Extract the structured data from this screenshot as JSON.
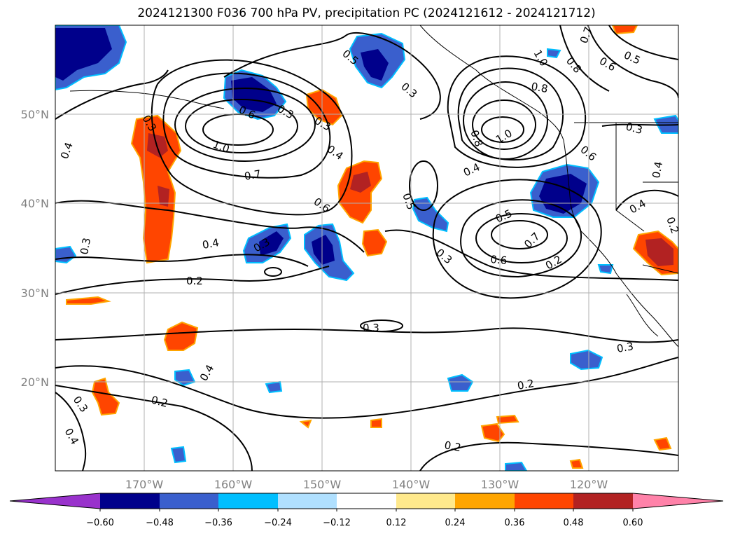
{
  "title": "2024121300 F036 700 hPa PV, precipitation PC (2024121612 - 2024121712)",
  "map": {
    "lat_ticks": [
      "50°N",
      "40°N",
      "30°N",
      "20°N"
    ],
    "lon_ticks": [
      "170°W",
      "160°W",
      "150°W",
      "140°W",
      "130°W",
      "120°W"
    ],
    "contour_labels": [
      "0.5",
      "0.4",
      "0.3",
      "0.8",
      "0.7",
      "0.6",
      "0.5",
      "0.3",
      "0.8",
      "1.0",
      "0.3",
      "0.6",
      "0.3",
      "0.4",
      "1.0",
      "0.7",
      "0.8",
      "1.0",
      "0.6",
      "0.4",
      "0.6",
      "0.4",
      "0.3",
      "0.5",
      "0.4",
      "0.7",
      "0.5",
      "0.3",
      "0.4",
      "0.2",
      "0.6",
      "0.2",
      "0.3",
      "0.2",
      "0.3",
      "0.3",
      "0.4",
      "0.3",
      "0.2",
      "0.2",
      "0.2",
      "0.4",
      "0.3"
    ]
  },
  "colorbar": {
    "ticks": [
      "−0.60",
      "−0.48",
      "−0.36",
      "−0.24",
      "−0.12",
      "0.12",
      "0.24",
      "0.36",
      "0.48",
      "0.60"
    ],
    "colors": [
      "#9932cc",
      "#00008b",
      "#3a5fcd",
      "#00bfff",
      "#b0e0ff",
      "#ffffff",
      "#ffe98c",
      "#ffa500",
      "#ff4500",
      "#b22222",
      "#ff82a9"
    ]
  }
}
